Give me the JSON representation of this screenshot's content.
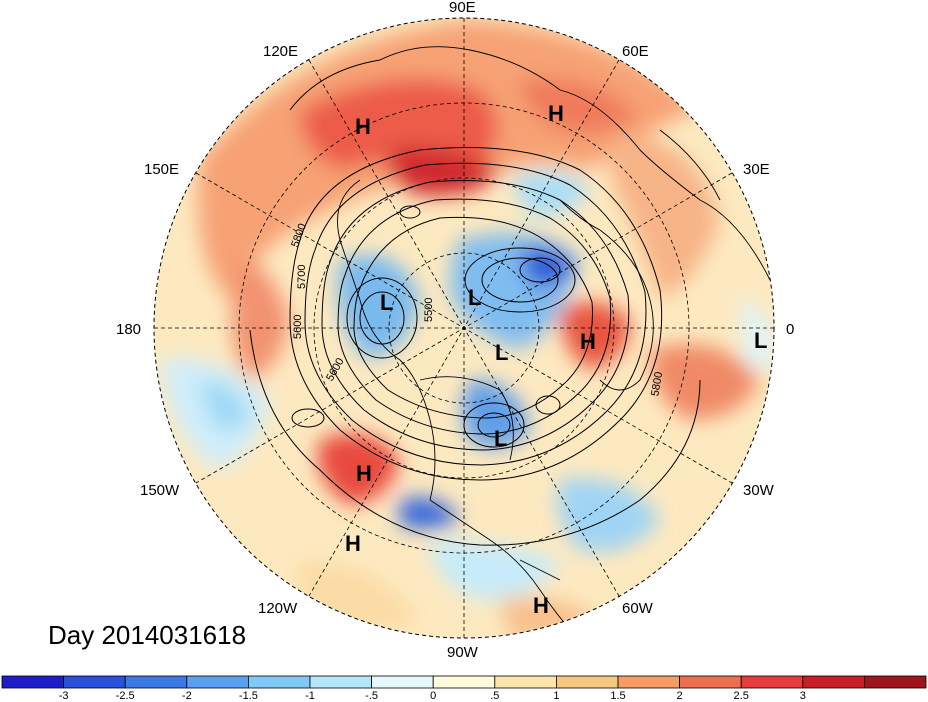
{
  "title": "Day 2014031618",
  "longitude_labels": [
    {
      "text": "90E",
      "pos": "top"
    },
    {
      "text": "60E",
      "pos": "upper-right"
    },
    {
      "text": "30E",
      "pos": "right-upper"
    },
    {
      "text": "0",
      "pos": "right"
    },
    {
      "text": "30W",
      "pos": "right-lower"
    },
    {
      "text": "60W",
      "pos": "lower-right"
    },
    {
      "text": "90W",
      "pos": "bottom"
    },
    {
      "text": "120W",
      "pos": "lower-left"
    },
    {
      "text": "150W",
      "pos": "left-lower"
    },
    {
      "text": "180",
      "pos": "left"
    },
    {
      "text": "150E",
      "pos": "left-upper"
    },
    {
      "text": "120E",
      "pos": "upper-left"
    }
  ],
  "pressure_systems": [
    {
      "type": "H",
      "text": "H",
      "region": "Mongolia / northern China"
    },
    {
      "type": "H",
      "text": "H",
      "region": "Central Asia"
    },
    {
      "type": "L",
      "text": "L",
      "region": "Bering Sea / Alaska"
    },
    {
      "type": "L",
      "text": "L",
      "region": "Arctic Ocean"
    },
    {
      "type": "L",
      "text": "L",
      "region": "Canadian Arctic"
    },
    {
      "type": "H",
      "text": "H",
      "region": "North Atlantic / Iceland"
    },
    {
      "type": "L",
      "text": "L",
      "region": "Tropical Atlantic"
    },
    {
      "type": "L",
      "text": "L",
      "region": "Hudson Bay"
    },
    {
      "type": "H",
      "text": "H",
      "region": "Western US coast"
    },
    {
      "type": "H",
      "text": "H",
      "region": "Eastern Pacific"
    },
    {
      "type": "H",
      "text": "H",
      "region": "Caribbean / South America"
    }
  ],
  "contour_labels": [
    "5800",
    "5700",
    "5600",
    "5600",
    "5500",
    "5800"
  ],
  "colorbar": {
    "colors": [
      "#1e1ec8",
      "#2850dc",
      "#3c78e6",
      "#5aa0f0",
      "#82c8f5",
      "#b4e6fa",
      "#e6f8fc",
      "#fffadc",
      "#fae6aa",
      "#f5c882",
      "#f59b64",
      "#f06e50",
      "#e63c3c",
      "#c81e28",
      "#a0141e"
    ],
    "labels": [
      "-3",
      "-2.5",
      "-2",
      "-1.5",
      "-1",
      "-.5",
      "0",
      ".5",
      "1",
      "1.5",
      "2",
      "2.5",
      "3"
    ]
  }
}
